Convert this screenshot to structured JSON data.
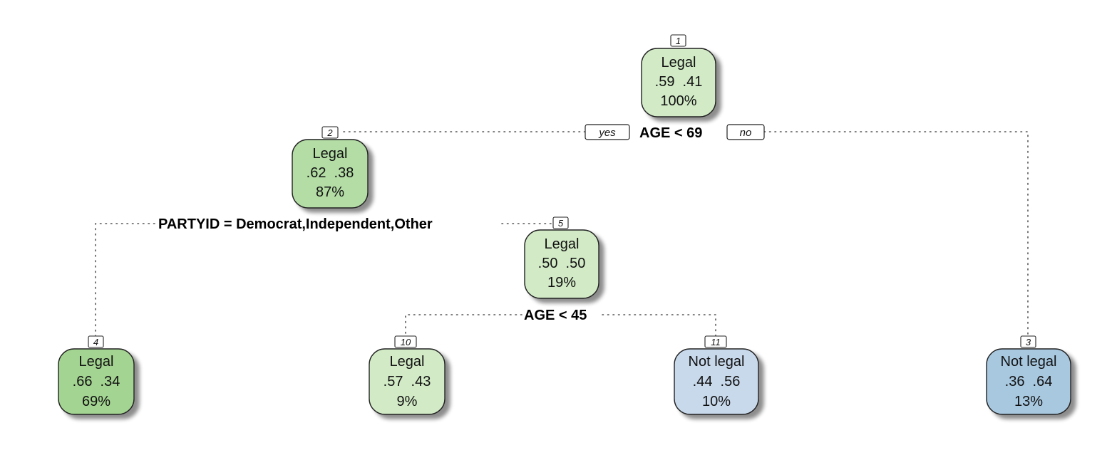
{
  "colors": {
    "legal_light": "#d2ebc6",
    "legal_mid": "#b3dda5",
    "legal_dark": "#a3d491",
    "notlegal_light": "#c8d9ec",
    "notlegal_dark": "#a8c8e0"
  },
  "nodes": [
    {
      "id": "1",
      "label": "Legal",
      "probs": ".59  .41",
      "percent": "100%"
    },
    {
      "id": "2",
      "label": "Legal",
      "probs": ".62  .38",
      "percent": "87%"
    },
    {
      "id": "3",
      "label": "Not legal",
      "probs": ".36  .64",
      "percent": "13%"
    },
    {
      "id": "4",
      "label": "Legal",
      "probs": ".66  .34",
      "percent": "69%"
    },
    {
      "id": "5",
      "label": "Legal",
      "probs": ".50  .50",
      "percent": "19%"
    },
    {
      "id": "10",
      "label": "Legal",
      "probs": ".57  .43",
      "percent": "9%"
    },
    {
      "id": "11",
      "label": "Not legal",
      "probs": ".44  .56",
      "percent": "10%"
    }
  ],
  "splits": {
    "root": "AGE < 69",
    "node2": "PARTYID = Democrat,Independent,Other",
    "node5": "AGE < 45"
  },
  "branch_labels": {
    "yes": "yes",
    "no": "no"
  }
}
